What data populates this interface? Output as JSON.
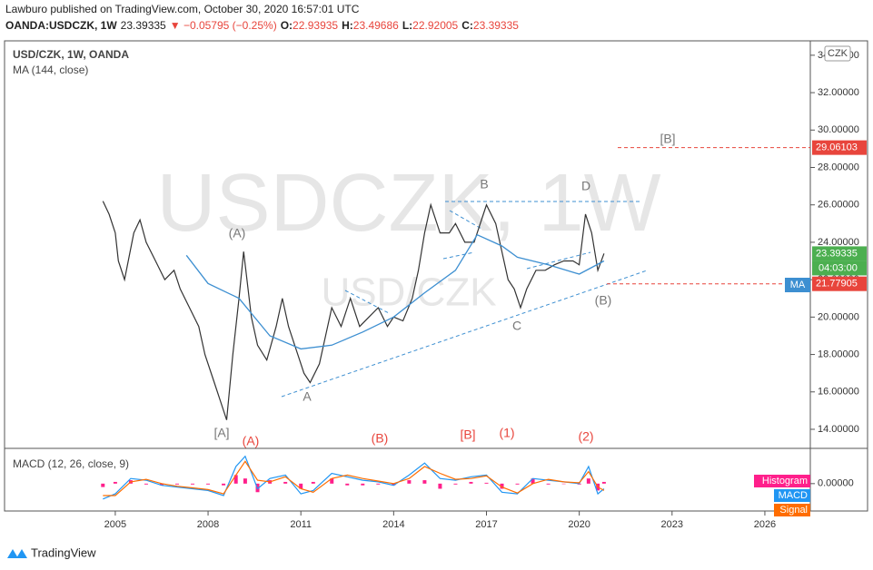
{
  "header": {
    "line1": "Lawburo published on TradingView.com, October 30, 2020 16:57:01 UTC",
    "symbol": "OANDA:USDCZK, 1W",
    "last": "23.39335",
    "change": "▼ −0.05795 (−0.25%)",
    "ohlc": [
      {
        "k": "O:",
        "v": "22.93935"
      },
      {
        "k": "H:",
        "v": "23.49686"
      },
      {
        "k": "L:",
        "v": "22.92005"
      },
      {
        "k": "C:",
        "v": "23.39335"
      }
    ]
  },
  "footer": {
    "brand": "TradingView"
  },
  "chart_data": [
    {
      "type": "line",
      "title": "USD/CZK, 1W, OANDA",
      "subtitle": "MA (144, close)",
      "watermark": "USDCZK, 1W",
      "watermark2": "USD/CZK",
      "currency": "CZK",
      "xlim": [
        2001.42,
        2027.47
      ],
      "xticks": [
        2005,
        2008,
        2011,
        2014,
        2017,
        2020,
        2023,
        2026
      ],
      "ylim": [
        12.98,
        34.77
      ],
      "yticks": [
        {
          "value": 14,
          "label": "14.00000"
        },
        {
          "value": 16,
          "label": "16.00000"
        },
        {
          "value": 18,
          "label": "18.00000"
        },
        {
          "value": 20,
          "label": "20.00000"
        },
        {
          "value": 22,
          "label": "22.00000"
        },
        {
          "value": 24,
          "label": "24.00000"
        },
        {
          "value": 26,
          "label": "26.00000"
        },
        {
          "value": 28,
          "label": "28.00000"
        },
        {
          "value": 30,
          "label": "30.00000"
        },
        {
          "value": 32,
          "label": "32.00000"
        },
        {
          "value": 34,
          "label": "34.00000"
        }
      ],
      "series": [
        {
          "name": "USD/CZK",
          "color": "#333333",
          "x": [
            2004.6,
            2004.8,
            2005.0,
            2005.1,
            2005.3,
            2005.6,
            2005.8,
            2006.0,
            2006.3,
            2006.6,
            2006.9,
            2007.1,
            2007.4,
            2007.7,
            2007.9,
            2008.2,
            2008.4,
            2008.6,
            2008.8,
            2009.0,
            2009.15,
            2009.4,
            2009.6,
            2009.9,
            2010.2,
            2010.4,
            2010.6,
            2010.9,
            2011.1,
            2011.3,
            2011.6,
            2011.8,
            2012.0,
            2012.3,
            2012.6,
            2012.9,
            2013.2,
            2013.5,
            2013.8,
            2014.0,
            2014.3,
            2014.6,
            2014.8,
            2015.0,
            2015.2,
            2015.5,
            2015.8,
            2016.0,
            2016.3,
            2016.6,
            2016.9,
            2017.0,
            2017.3,
            2017.5,
            2017.7,
            2017.9,
            2018.1,
            2018.3,
            2018.6,
            2018.9,
            2019.2,
            2019.5,
            2019.8,
            2020.0,
            2020.2,
            2020.4,
            2020.6,
            2020.8
          ],
          "values": [
            26.2,
            25.5,
            24.5,
            23.0,
            22.0,
            24.5,
            25.2,
            24.0,
            23.0,
            22.0,
            22.5,
            21.5,
            20.5,
            19.5,
            18.0,
            16.5,
            15.5,
            14.5,
            18.0,
            21.0,
            23.5,
            20.0,
            18.5,
            17.7,
            19.5,
            21.0,
            19.5,
            18.0,
            17.0,
            16.5,
            17.5,
            19.0,
            20.5,
            19.5,
            21.0,
            19.5,
            20.0,
            20.5,
            19.5,
            20.0,
            19.8,
            21.0,
            22.5,
            24.5,
            26.0,
            24.5,
            24.5,
            25.0,
            24.0,
            24.0,
            25.5,
            26.0,
            25.0,
            23.5,
            22.0,
            21.5,
            20.5,
            21.5,
            22.5,
            22.5,
            22.8,
            23.0,
            23.0,
            22.8,
            25.5,
            24.5,
            22.5,
            23.4
          ]
        },
        {
          "name": "MA",
          "color": "#3d8fd1",
          "x": [
            2007.3,
            2008.0,
            2009.0,
            2010.0,
            2011.0,
            2012.0,
            2013.0,
            2014.0,
            2015.0,
            2016.0,
            2016.7,
            2017.5,
            2018.0,
            2019.0,
            2020.0,
            2020.8
          ],
          "values": [
            23.3,
            21.8,
            21.0,
            19.0,
            18.3,
            18.5,
            19.2,
            20.0,
            21.3,
            22.5,
            24.4,
            23.8,
            23.2,
            22.8,
            22.3,
            23.0
          ]
        }
      ],
      "price_labels": [
        {
          "value": 29.06103,
          "color": "#e8453c"
        },
        {
          "value": 23.39335,
          "color": "#4caf50"
        },
        {
          "value": 21.77905,
          "color": "#e8453c"
        }
      ],
      "countdown": "04:03:00",
      "ma_label": "MA",
      "annotations": [
        "(A)",
        "[A]",
        "A",
        "B",
        "C",
        "D",
        "(B)",
        "[B]",
        "(A)",
        "(B)",
        "[B]",
        "(1)",
        "(2)"
      ]
    },
    {
      "type": "macd",
      "title": "MACD (12, 26, close, 9)",
      "ylim": [
        -1.6,
        1.9
      ],
      "yticks": [
        {
          "value": 0,
          "label": "0.00000"
        }
      ],
      "x": [
        2004.6,
        2005,
        2005.5,
        2006,
        2006.5,
        2007,
        2007.5,
        2008,
        2008.5,
        2008.9,
        2009.2,
        2009.6,
        2010,
        2010.5,
        2011,
        2011.4,
        2012,
        2012.5,
        2013,
        2013.5,
        2014,
        2014.5,
        2015,
        2015.5,
        2016,
        2016.5,
        2017,
        2017.5,
        2018,
        2018.5,
        2019,
        2019.5,
        2020,
        2020.3,
        2020.6,
        2020.8
      ],
      "series": [
        {
          "name": "Histogram",
          "color": "#ff1f8b",
          "values": [
            -0.2,
            0.1,
            0.2,
            -0.05,
            -0.1,
            -0.05,
            -0.05,
            -0.05,
            -0.1,
            0.5,
            0.3,
            -0.5,
            0.2,
            0.1,
            -0.3,
            0.1,
            0.3,
            -0.1,
            -0.1,
            -0.05,
            -0.1,
            0.2,
            0.2,
            -0.3,
            -0.05,
            0.1,
            0.05,
            -0.3,
            -0.05,
            0.3,
            -0.05,
            0,
            -0.05,
            0.3,
            -0.4,
            0.1
          ]
        },
        {
          "name": "MACD",
          "color": "#2196f3",
          "values": [
            -0.9,
            -0.6,
            0.3,
            0.2,
            -0.1,
            -0.2,
            -0.3,
            -0.4,
            -0.7,
            1.0,
            1.6,
            -0.3,
            0.3,
            0.5,
            -0.6,
            -0.4,
            0.6,
            0.4,
            0.2,
            0.1,
            -0.1,
            0.5,
            1.2,
            0.3,
            0.2,
            0.4,
            0.5,
            -0.5,
            -0.6,
            0.3,
            0.2,
            0.1,
            0.0,
            1.0,
            -0.6,
            -0.3
          ]
        },
        {
          "name": "Signal",
          "color": "#ff6d00",
          "values": [
            -0.7,
            -0.7,
            0.1,
            0.25,
            0.0,
            -0.15,
            -0.25,
            -0.35,
            -0.6,
            0.5,
            1.3,
            0.2,
            0.1,
            0.4,
            -0.3,
            -0.5,
            0.3,
            0.5,
            0.3,
            0.15,
            0.0,
            0.3,
            1.0,
            0.6,
            0.25,
            0.3,
            0.45,
            -0.2,
            -0.55,
            0.0,
            0.25,
            0.1,
            0.05,
            0.7,
            -0.2,
            -0.4
          ]
        }
      ]
    }
  ]
}
